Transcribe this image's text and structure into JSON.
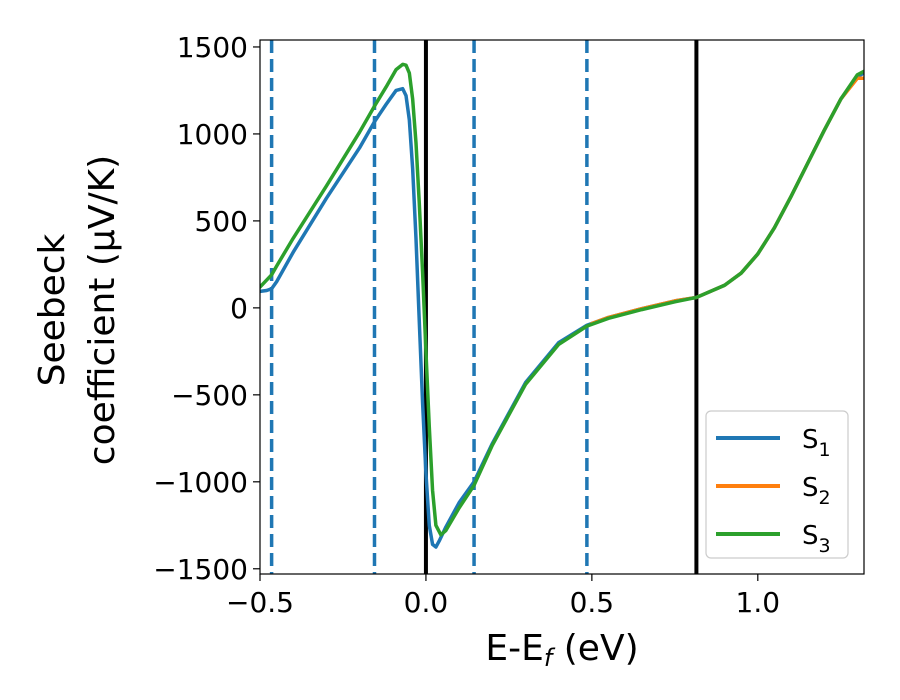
{
  "chart_data": {
    "type": "line",
    "title": "",
    "xlabel": {
      "main": "E-E",
      "sub": "f",
      "unit": " (eV)"
    },
    "ylabel": {
      "line1": "Seebeck",
      "line2": "coefficient  (μV/K)"
    },
    "xlim": [
      -0.5,
      1.32
    ],
    "ylim": [
      -1530,
      1540
    ],
    "x_ticks": [
      {
        "value": -0.5,
        "label": "−0.5"
      },
      {
        "value": 0.0,
        "label": "0.0"
      },
      {
        "value": 0.5,
        "label": "0.5"
      },
      {
        "value": 1.0,
        "label": "1.0"
      }
    ],
    "y_ticks": [
      {
        "value": 1500,
        "label": "1500"
      },
      {
        "value": 1000,
        "label": "1000"
      },
      {
        "value": 500,
        "label": "500"
      },
      {
        "value": 0,
        "label": "0"
      },
      {
        "value": -500,
        "label": "−500"
      },
      {
        "value": -1000,
        "label": "−1000"
      },
      {
        "value": -1500,
        "label": "−1500"
      }
    ],
    "vertical_lines": [
      {
        "x": -0.465,
        "style": "dashed",
        "color": "#1f77b4"
      },
      {
        "x": -0.155,
        "style": "dashed",
        "color": "#1f77b4"
      },
      {
        "x": 0.145,
        "style": "dashed",
        "color": "#1f77b4"
      },
      {
        "x": 0.485,
        "style": "dashed",
        "color": "#1f77b4"
      },
      {
        "x": 0.0,
        "style": "solid",
        "color": "#000000"
      },
      {
        "x": 0.815,
        "style": "solid",
        "color": "#000000"
      }
    ],
    "legend": {
      "placement": "lower-right",
      "entries": [
        {
          "base": "S",
          "sub": "1",
          "color": "#1f77b4"
        },
        {
          "base": "S",
          "sub": "2",
          "color": "#ff7f0e"
        },
        {
          "base": "S",
          "sub": "3",
          "color": "#2ca02c"
        }
      ]
    },
    "series": [
      {
        "name": "S1",
        "color": "#1f77b4",
        "x": [
          -0.5,
          -0.48,
          -0.465,
          -0.45,
          -0.4,
          -0.3,
          -0.2,
          -0.155,
          -0.12,
          -0.09,
          -0.07,
          -0.06,
          -0.05,
          -0.04,
          -0.03,
          -0.02,
          -0.01,
          0.0,
          0.01,
          0.02,
          0.03,
          0.04,
          0.06,
          0.1,
          0.145,
          0.2,
          0.3,
          0.4,
          0.485,
          0.55,
          0.65,
          0.75,
          0.815,
          0.9,
          0.95,
          1.0,
          1.05,
          1.1,
          1.15,
          1.2,
          1.25,
          1.3,
          1.32
        ],
        "y": [
          95,
          100,
          110,
          150,
          320,
          630,
          920,
          1070,
          1170,
          1250,
          1260,
          1220,
          1080,
          800,
          400,
          -80,
          -550,
          -950,
          -1250,
          -1360,
          -1375,
          -1340,
          -1260,
          -1120,
          -1000,
          -780,
          -430,
          -200,
          -100,
          -55,
          -5,
          40,
          60,
          130,
          200,
          310,
          460,
          640,
          830,
          1020,
          1200,
          1330,
          1350
        ]
      },
      {
        "name": "S2",
        "color": "#ff7f0e",
        "x": [
          0.5,
          0.55,
          0.65,
          0.75,
          0.815,
          0.9,
          0.95,
          1.0,
          1.05,
          1.1,
          1.15,
          1.2,
          1.25,
          1.3,
          1.32
        ],
        "y": [
          -90,
          -55,
          -5,
          40,
          60,
          130,
          200,
          310,
          460,
          640,
          830,
          1020,
          1200,
          1320,
          1320
        ]
      },
      {
        "name": "S3",
        "color": "#2ca02c",
        "x": [
          -0.5,
          -0.48,
          -0.465,
          -0.45,
          -0.4,
          -0.3,
          -0.2,
          -0.155,
          -0.12,
          -0.09,
          -0.07,
          -0.06,
          -0.05,
          -0.04,
          -0.03,
          -0.02,
          -0.01,
          0.0,
          0.01,
          0.02,
          0.03,
          0.045,
          0.06,
          0.1,
          0.145,
          0.2,
          0.3,
          0.4,
          0.485,
          0.55,
          0.65,
          0.75,
          0.815,
          0.9,
          0.95,
          1.0,
          1.05,
          1.1,
          1.15,
          1.2,
          1.25,
          1.3,
          1.32
        ],
        "y": [
          120,
          160,
          190,
          240,
          400,
          700,
          1010,
          1160,
          1270,
          1370,
          1400,
          1395,
          1350,
          1200,
          950,
          600,
          200,
          -250,
          -680,
          -1050,
          -1250,
          -1305,
          -1280,
          -1150,
          -1020,
          -790,
          -440,
          -210,
          -105,
          -60,
          -10,
          35,
          60,
          130,
          200,
          310,
          460,
          640,
          830,
          1020,
          1200,
          1340,
          1360
        ]
      }
    ]
  }
}
